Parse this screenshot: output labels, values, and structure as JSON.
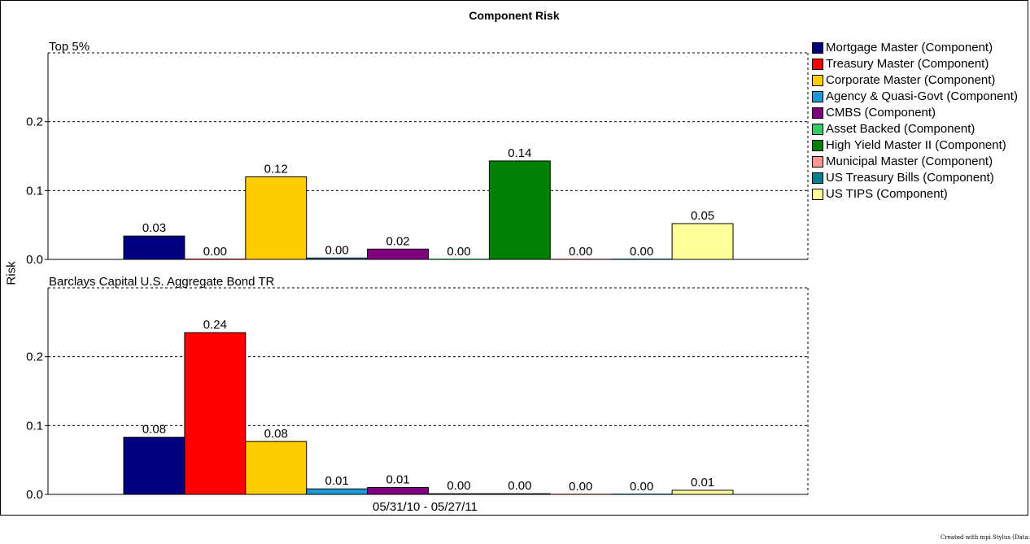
{
  "chart_data": {
    "type": "bar",
    "title": "Component Risk",
    "ylabel": "Risk",
    "xlabel": "",
    "x_tick": "05/31/10 - 05/27/11",
    "ylim": [
      0,
      0.3
    ],
    "yticks": [
      "0.0",
      "0.1",
      "0.2"
    ],
    "grid": true,
    "legend_position": "right",
    "series": [
      {
        "name": "Mortgage Master (Component)",
        "color": "#000080"
      },
      {
        "name": "Treasury Master (Component)",
        "color": "#ff0000"
      },
      {
        "name": "Corporate Master (Component)",
        "color": "#ffcc00"
      },
      {
        "name": "Agency & Quasi-Govt (Component)",
        "color": "#1a9ad6"
      },
      {
        "name": "CMBS (Component)",
        "color": "#800080"
      },
      {
        "name": "Asset Backed (Component)",
        "color": "#33cc66"
      },
      {
        "name": "High Yield Master II (Component)",
        "color": "#008000"
      },
      {
        "name": "Municipal Master (Component)",
        "color": "#ff9999"
      },
      {
        "name": "US Treasury Bills (Component)",
        "color": "#007f8c"
      },
      {
        "name": "US TIPS (Component)",
        "color": "#ffff99"
      }
    ],
    "panels": [
      {
        "title": "Top 5%",
        "values": [
          0.034,
          0.0,
          0.12,
          0.002,
          0.015,
          0.0,
          0.143,
          0.0,
          0.0,
          0.052
        ],
        "labels": [
          "0.03",
          "0.00",
          "0.12",
          "0.00",
          "0.02",
          "0.00",
          "0.14",
          "0.00",
          "0.00",
          "0.05"
        ]
      },
      {
        "title": "Barclays Capital U.S. Aggregate Bond TR",
        "values": [
          0.083,
          0.235,
          0.077,
          0.008,
          0.01,
          0.001,
          0.001,
          0.0,
          0.0,
          0.006
        ],
        "labels": [
          "0.08",
          "0.24",
          "0.08",
          "0.01",
          "0.01",
          "0.00",
          "0.00",
          "0.00",
          "0.00",
          "0.01"
        ]
      }
    ]
  },
  "credit": "Created with mpi Stylus (Data: Lipper"
}
